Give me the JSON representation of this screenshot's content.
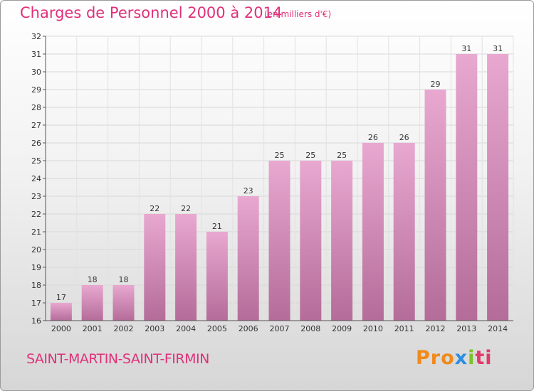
{
  "header": {
    "title": "Charges de Personnel 2000 à 2014",
    "subtitle": "(en milliers d'€)"
  },
  "footer": {
    "commune": "SAINT-MARTIN-SAINT-FIRMIN",
    "logo": [
      "Pro",
      "x",
      "i",
      "ti"
    ]
  },
  "colors": {
    "title": "#e0307a",
    "bar_top": "#e8a8d0",
    "bar_bottom": "#b46c99"
  },
  "chart_data": {
    "type": "bar",
    "title": "Charges de Personnel 2000 à 2014",
    "subtitle": "(en milliers d'€)",
    "categories": [
      "2000",
      "2001",
      "2002",
      "2003",
      "2004",
      "2005",
      "2006",
      "2007",
      "2008",
      "2009",
      "2010",
      "2011",
      "2012",
      "2013",
      "2014"
    ],
    "values": [
      17,
      18,
      18,
      22,
      22,
      21,
      23,
      25,
      25,
      25,
      26,
      26,
      29,
      31,
      31
    ],
    "ylim": [
      16,
      32
    ],
    "yticks": [
      16,
      17,
      18,
      19,
      20,
      21,
      22,
      23,
      24,
      25,
      26,
      27,
      28,
      29,
      30,
      31,
      32
    ],
    "grid": true,
    "data_labels": true
  }
}
